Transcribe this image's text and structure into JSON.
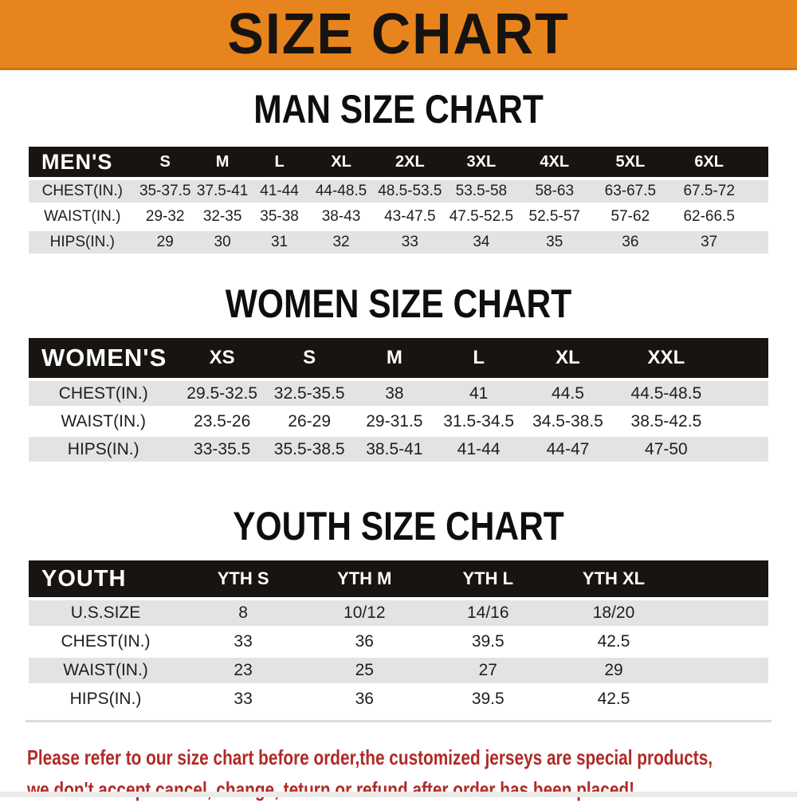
{
  "banner": {
    "title": "SIZE CHART"
  },
  "theme": {
    "banner_bg": "#E8841E",
    "banner_text": "#171310",
    "header_bg": "#171411",
    "header_text": "#ffffff",
    "stripe": "#e3e3e3",
    "cell_text": "#1e1e1e",
    "note_red": "#B02A26"
  },
  "chart_data": [
    {
      "type": "table",
      "title": "MAN SIZE CHART",
      "corner_label": "MEN'S",
      "columns": [
        "S",
        "M",
        "L",
        "XL",
        "2XL",
        "3XL",
        "4XL",
        "5XL",
        "6XL"
      ],
      "rows": [
        {
          "label": "CHEST(IN.)",
          "values": [
            "35-37.5",
            "37.5-41",
            "41-44",
            "44-48.5",
            "48.5-53.5",
            "53.5-58",
            "58-63",
            "63-67.5",
            "67.5-72"
          ]
        },
        {
          "label": "WAIST(IN.)",
          "values": [
            "29-32",
            "32-35",
            "35-38",
            "38-43",
            "43-47.5",
            "47.5-52.5",
            "52.5-57",
            "57-62",
            "62-66.5"
          ]
        },
        {
          "label": "HIPS(IN.)",
          "values": [
            "29",
            "30",
            "31",
            "32",
            "33",
            "34",
            "35",
            "36",
            "37"
          ]
        }
      ]
    },
    {
      "type": "table",
      "title": "WOMEN SIZE CHART",
      "corner_label": "WOMEN'S",
      "columns": [
        "XS",
        "S",
        "M",
        "L",
        "XL",
        "XXL"
      ],
      "rows": [
        {
          "label": "CHEST(IN.)",
          "values": [
            "29.5-32.5",
            "32.5-35.5",
            "38",
            "41",
            "44.5",
            "44.5-48.5"
          ]
        },
        {
          "label": "WAIST(IN.)",
          "values": [
            "23.5-26",
            "26-29",
            "29-31.5",
            "31.5-34.5",
            "34.5-38.5",
            "38.5-42.5"
          ]
        },
        {
          "label": "HIPS(IN.)",
          "values": [
            "33-35.5",
            "35.5-38.5",
            "38.5-41",
            "41-44",
            "44-47",
            "47-50"
          ]
        }
      ]
    },
    {
      "type": "table",
      "title": "YOUTH SIZE CHART",
      "corner_label": "YOUTH",
      "columns": [
        "YTH S",
        "YTH M",
        "YTH L",
        "YTH XL"
      ],
      "rows": [
        {
          "label": "U.S.SIZE",
          "values": [
            "8",
            "10/12",
            "14/16",
            "18/20"
          ]
        },
        {
          "label": "CHEST(IN.)",
          "values": [
            "33",
            "36",
            "39.5",
            "42.5"
          ]
        },
        {
          "label": "WAIST(IN.)",
          "values": [
            "23",
            "25",
            "27",
            "29"
          ]
        },
        {
          "label": "HIPS(IN.)",
          "values": [
            "33",
            "36",
            "39.5",
            "42.5"
          ]
        }
      ]
    }
  ],
  "footer": {
    "line1": "Please refer to our size chart before order,the customized jerseys are special products,",
    "line2": "we don't accept cancel, change, teturn or refund after order has been placed!"
  }
}
